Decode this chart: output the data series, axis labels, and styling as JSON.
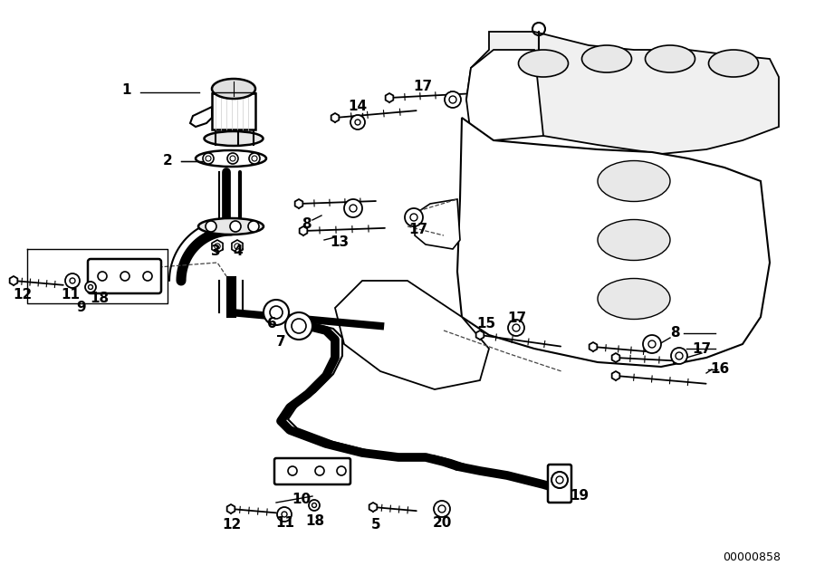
{
  "bg_color": "#ffffff",
  "line_color": "#000000",
  "diagram_id": "00000858",
  "figsize": [
    9.0,
    6.35
  ],
  "dpi": 100
}
